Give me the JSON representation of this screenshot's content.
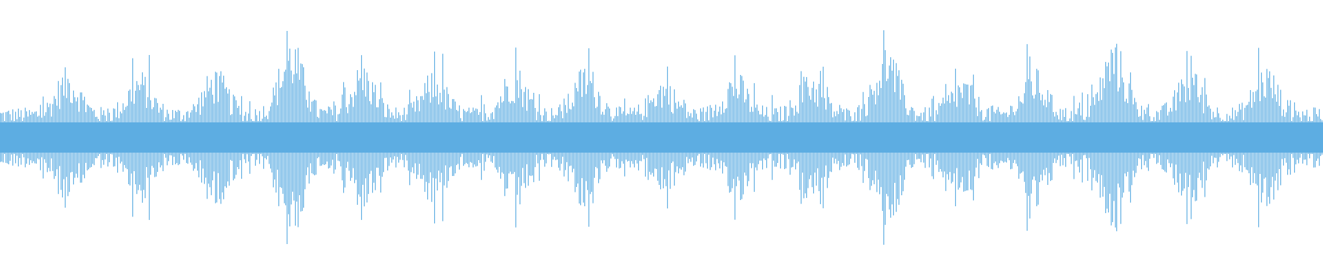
{
  "waveform": {
    "color": "#5DADE2",
    "background": "#FFFFFF",
    "bar_count": 960,
    "amplitude_range": [
      -1,
      1
    ],
    "baseline_amplitude": 0.22,
    "bursts": [
      {
        "center_bar": 49,
        "peak": 0.52
      },
      {
        "center_bar": 101,
        "peak": 0.5
      },
      {
        "center_bar": 156,
        "peak": 0.52
      },
      {
        "center_bar": 211,
        "peak": 0.75
      },
      {
        "center_bar": 263,
        "peak": 0.55
      },
      {
        "center_bar": 315,
        "peak": 0.5
      },
      {
        "center_bar": 373,
        "peak": 0.55
      },
      {
        "center_bar": 425,
        "peak": 0.55
      },
      {
        "center_bar": 481,
        "peak": 0.45
      },
      {
        "center_bar": 533,
        "peak": 0.5
      },
      {
        "center_bar": 588,
        "peak": 0.5
      },
      {
        "center_bar": 643,
        "peak": 0.7
      },
      {
        "center_bar": 698,
        "peak": 0.45
      },
      {
        "center_bar": 750,
        "peak": 0.52
      },
      {
        "center_bar": 808,
        "peak": 0.72
      },
      {
        "center_bar": 863,
        "peak": 0.52
      },
      {
        "center_bar": 918,
        "peak": 0.55
      }
    ]
  }
}
